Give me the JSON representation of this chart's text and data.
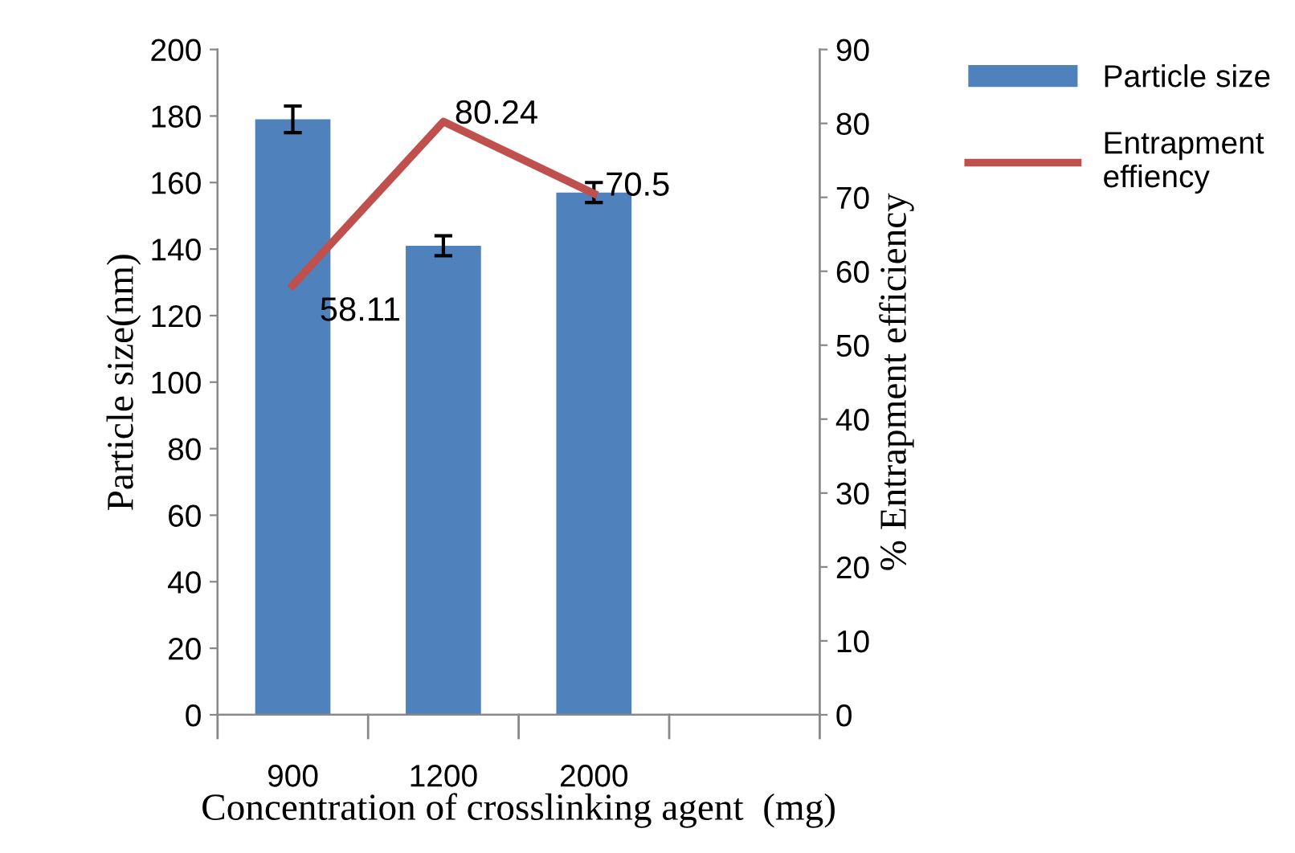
{
  "chart_data": {
    "type": "bar",
    "xlabel": "Concentration of crosslinking agent  (mg)",
    "ylabel": "Particle size(nm)",
    "y2label": "% Entrapment efficiency",
    "categories": [
      "900",
      "1200",
      "2000",
      null
    ],
    "series": [
      {
        "name": "Particle size",
        "color": "#4f81bd",
        "values": [
          179,
          141,
          157,
          null
        ],
        "errors": [
          4,
          3,
          3,
          null
        ]
      },
      {
        "name": "Entrapment\neffiency",
        "type": "line",
        "axis": "y2",
        "color": "#c0504d",
        "values": [
          58.11,
          80.24,
          70.5,
          null
        ],
        "marker": "none",
        "line_style": "solid",
        "data_labels": true
      }
    ],
    "ylim": [
      0,
      200
    ],
    "yticks": [
      0,
      20,
      40,
      60,
      80,
      100,
      120,
      140,
      160,
      180,
      200
    ],
    "y2lim": [
      0,
      90
    ],
    "y2ticks": [
      0,
      10,
      20,
      30,
      40,
      50,
      60,
      70,
      80,
      90
    ],
    "grid": false,
    "legend": "top right"
  }
}
